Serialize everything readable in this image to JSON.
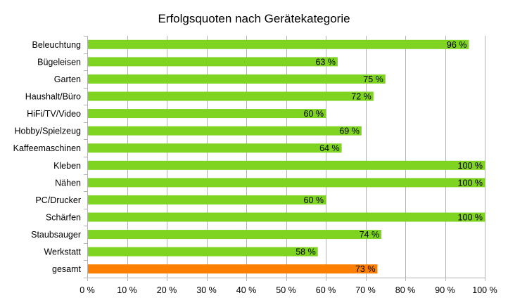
{
  "chart_data": {
    "type": "bar",
    "orientation": "horizontal",
    "title": "Erfolgsquoten nach Gerätekategorie",
    "xlabel": "",
    "ylabel": "",
    "xlim": [
      0,
      100
    ],
    "x_tick_step": 10,
    "tick_suffix": " %",
    "grid": true,
    "legend": "none",
    "categories": [
      "Beleuchtung",
      "Bügeleisen",
      "Garten",
      "Haushalt/Büro",
      "HiFi/TV/Video",
      "Hobby/Spielzeug",
      "Kaffeemaschinen",
      "Kleben",
      "Nähen",
      "PC/Drucker",
      "Schärfen",
      "Staubsauger",
      "Werkstatt",
      "gesamt"
    ],
    "values": [
      96,
      63,
      75,
      72,
      60,
      69,
      64,
      100,
      100,
      60,
      100,
      74,
      58,
      73
    ],
    "data_labels": [
      "96 %",
      "63 %",
      "75 %",
      "72 %",
      "60 %",
      "69 %",
      "64 %",
      "100 %",
      "100 %",
      "60 %",
      "100 %",
      "74 %",
      "58 %",
      "73 %"
    ],
    "colors": {
      "default": "#7fd321",
      "highlight": "#ff8000",
      "grid": "#b3b3b3",
      "axis": "#b3b3b3"
    },
    "highlight_category": "gesamt"
  }
}
